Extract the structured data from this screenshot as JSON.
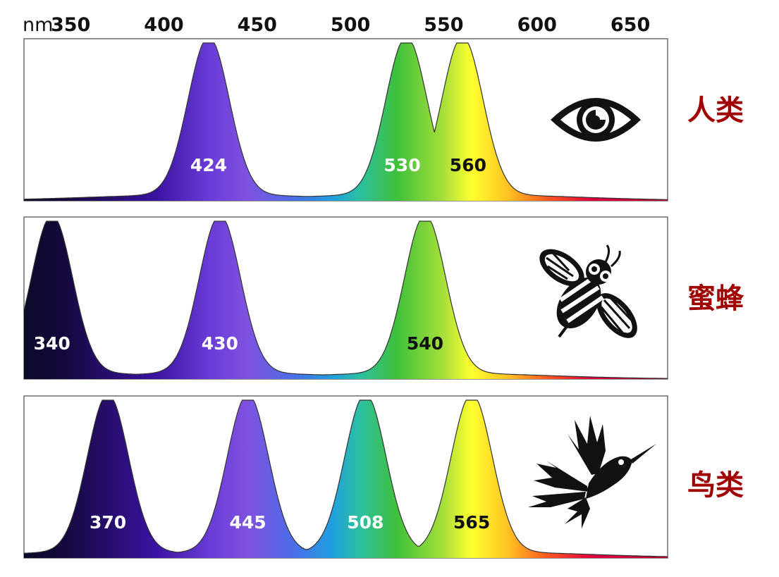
{
  "axis": {
    "unit": "nm",
    "ticks": [
      350,
      400,
      450,
      500,
      550,
      600,
      650
    ],
    "tick_labels": [
      "350",
      "400",
      "450",
      "500",
      "550",
      "600",
      "650"
    ],
    "range_nm": [
      325,
      670
    ]
  },
  "panels": [
    {
      "label": "人类",
      "icon": "eye-icon",
      "peaks": [
        424,
        530,
        560
      ],
      "peak_labels": [
        "424",
        "530",
        "560"
      ],
      "peak_label_colors": [
        "#ffffff",
        "#ffffff",
        "#111111"
      ]
    },
    {
      "label": "蜜蜂",
      "icon": "bee-icon",
      "peaks": [
        340,
        430,
        540
      ],
      "peak_labels": [
        "340",
        "430",
        "540"
      ],
      "peak_label_colors": [
        "#ffffff",
        "#ffffff",
        "#111111"
      ]
    },
    {
      "label": "鸟类",
      "icon": "hummingbird-icon",
      "peaks": [
        370,
        445,
        508,
        565
      ],
      "peak_labels": [
        "370",
        "445",
        "508",
        "565"
      ],
      "peak_label_colors": [
        "#ffffff",
        "#ffffff",
        "#ffffff",
        "#111111"
      ]
    }
  ],
  "colors": {
    "label_color": "#a00000",
    "spectrum": [
      "#0a0a2a",
      "#14083a",
      "#3a12a0",
      "#6a3cd8",
      "#7f52e0",
      "#4a6ee8",
      "#1f9fe0",
      "#2cc0a0",
      "#3fc03a",
      "#a8e03a",
      "#ffff30",
      "#ffc020",
      "#ff5a20",
      "#e00040",
      "#c00030"
    ],
    "spectrum_nm": [
      325,
      345,
      395,
      425,
      445,
      470,
      490,
      505,
      525,
      550,
      565,
      585,
      605,
      630,
      670
    ]
  }
}
